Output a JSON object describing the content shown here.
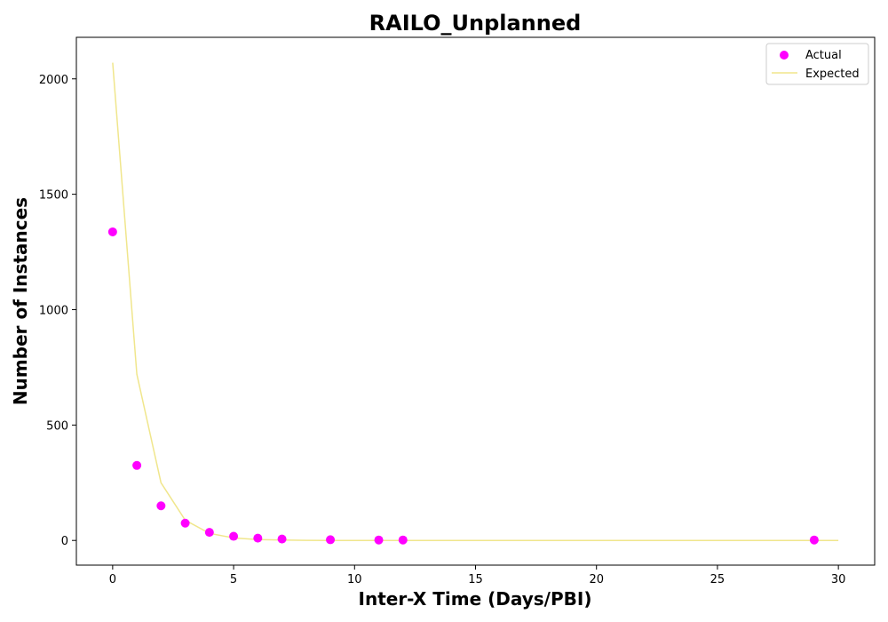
{
  "chart_data": {
    "type": "scatter",
    "title": "RAILO_Unplanned",
    "xlabel": "Inter-X Time (Days/PBI)",
    "ylabel": "Number of Instances",
    "xlim": [
      -1.5,
      31.5
    ],
    "ylim": [
      -107,
      2180
    ],
    "xticks": [
      0,
      5,
      10,
      15,
      20,
      25,
      30
    ],
    "yticks": [
      0,
      500,
      1000,
      1500,
      2000
    ],
    "grid": false,
    "legend_position": "top-right",
    "series": [
      {
        "name": "Actual",
        "kind": "scatter",
        "color": "#ff00ff",
        "x": [
          0,
          1,
          2,
          3,
          4,
          5,
          6,
          7,
          9,
          11,
          12,
          29
        ],
        "y": [
          1337,
          325,
          150,
          75,
          35,
          18,
          10,
          6,
          3,
          2,
          2,
          2
        ]
      },
      {
        "name": "Expected",
        "kind": "line",
        "color": "#f0e68c",
        "x": [
          0,
          1,
          2,
          3,
          4,
          5,
          6,
          7,
          8,
          9,
          10,
          11,
          12,
          13,
          14,
          15,
          16,
          17,
          18,
          19,
          20,
          21,
          22,
          23,
          24,
          25,
          26,
          27,
          28,
          29,
          30
        ],
        "y": [
          2070,
          720,
          250,
          88,
          31,
          11,
          4,
          1.4,
          0.5,
          0.2,
          0.1,
          0,
          0,
          0,
          0,
          0,
          0,
          0,
          0,
          0,
          0,
          0,
          0,
          0,
          0,
          0,
          0,
          0,
          0,
          0,
          0
        ]
      }
    ]
  }
}
